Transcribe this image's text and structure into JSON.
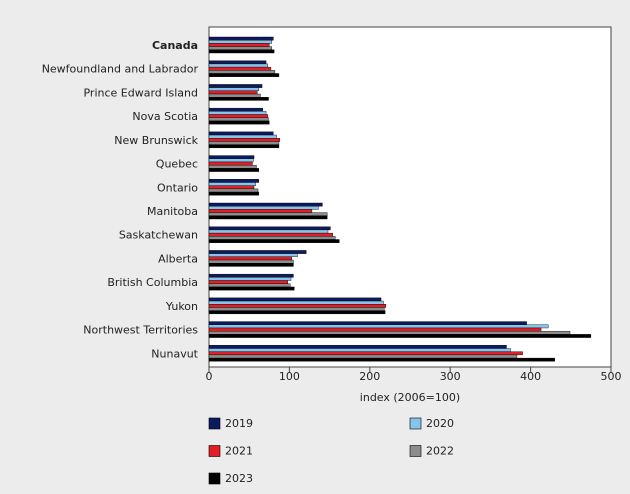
{
  "chart_data": {
    "type": "bar",
    "orientation": "horizontal",
    "categories": [
      "Canada",
      "Newfoundland and Labrador",
      "Prince Edward Island",
      "Nova Scotia",
      "New Brunswick",
      "Quebec",
      "Ontario",
      "Manitoba",
      "Saskatchewan",
      "Alberta",
      "British Columbia",
      "Yukon",
      "Northwest Territories",
      "Nunavut"
    ],
    "bold_categories": [
      "Canada"
    ],
    "series": [
      {
        "name": "2019",
        "color": "#0d1a5e",
        "values": [
          80,
          71,
          66,
          67,
          80,
          56,
          62,
          141,
          151,
          121,
          105,
          214,
          395,
          370
        ]
      },
      {
        "name": "2020",
        "color": "#87c4ec",
        "values": [
          78,
          73,
          62,
          71,
          84,
          55,
          58,
          136,
          148,
          110,
          102,
          217,
          422,
          375
        ]
      },
      {
        "name": "2021",
        "color": "#e41e26",
        "values": [
          75,
          77,
          60,
          73,
          88,
          54,
          56,
          128,
          154,
          103,
          98,
          220,
          413,
          390
        ]
      },
      {
        "name": "2022",
        "color": "#8c8c8c",
        "values": [
          78,
          82,
          64,
          74,
          87,
          59,
          61,
          147,
          157,
          105,
          101,
          218,
          449,
          383
        ]
      },
      {
        "name": "2023",
        "color": "#000000",
        "values": [
          81,
          87,
          74,
          75,
          87,
          62,
          62,
          147,
          162,
          105,
          106,
          219,
          475,
          430
        ]
      }
    ],
    "xlabel": "index (2006=100)",
    "xlim": [
      0,
      500
    ],
    "xticks": [
      0,
      100,
      200,
      300,
      400,
      500
    ],
    "grid": false,
    "legend_position": "bottom"
  }
}
